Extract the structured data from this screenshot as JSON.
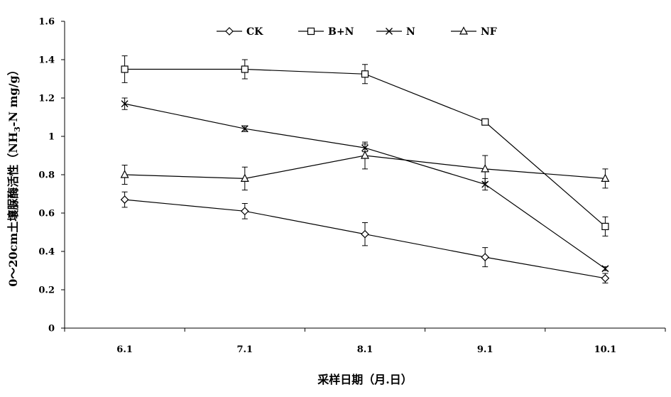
{
  "chart_data": {
    "type": "line",
    "title": "",
    "xlabel": "采样日期（月.日）",
    "ylabel": "0～20cm土壤脲酶活性（NH3-N mg/g）",
    "ylabel_parts": {
      "prefix": "0～20cm土壤脲酶活性（NH",
      "sub": "3",
      "suffix": "-N mg/g）"
    },
    "categories": [
      "6.1",
      "7.1",
      "8.1",
      "9.1",
      "10.1"
    ],
    "ylim": [
      0,
      1.6
    ],
    "yticks": [
      0,
      0.2,
      0.4,
      0.6,
      0.8,
      1,
      1.2,
      1.4,
      1.6
    ],
    "ytick_labels": [
      "0",
      "0.2",
      "0.4",
      "0.6",
      "0.8",
      "1",
      "1.2",
      "1.4",
      "1.6"
    ],
    "grid": false,
    "legend_position": "top-center",
    "series": [
      {
        "name": "CK",
        "marker": "diamond",
        "values": [
          0.67,
          0.61,
          0.49,
          0.37,
          0.26
        ],
        "errors": [
          0.04,
          0.04,
          0.06,
          0.05,
          0.025
        ]
      },
      {
        "name": "B+N",
        "marker": "square",
        "values": [
          1.35,
          1.35,
          1.325,
          1.075,
          0.53
        ],
        "errors": [
          0.07,
          0.05,
          0.05,
          0.015,
          0.05
        ]
      },
      {
        "name": "N",
        "marker": "cross",
        "values": [
          1.17,
          1.04,
          0.94,
          0.75,
          0.31
        ],
        "errors": [
          0.03,
          0.015,
          0.02,
          0.03,
          0.01
        ]
      },
      {
        "name": "NF",
        "marker": "triangle",
        "values": [
          0.8,
          0.78,
          0.9,
          0.83,
          0.78
        ],
        "errors": [
          0.05,
          0.06,
          0.07,
          0.07,
          0.05
        ]
      }
    ]
  }
}
